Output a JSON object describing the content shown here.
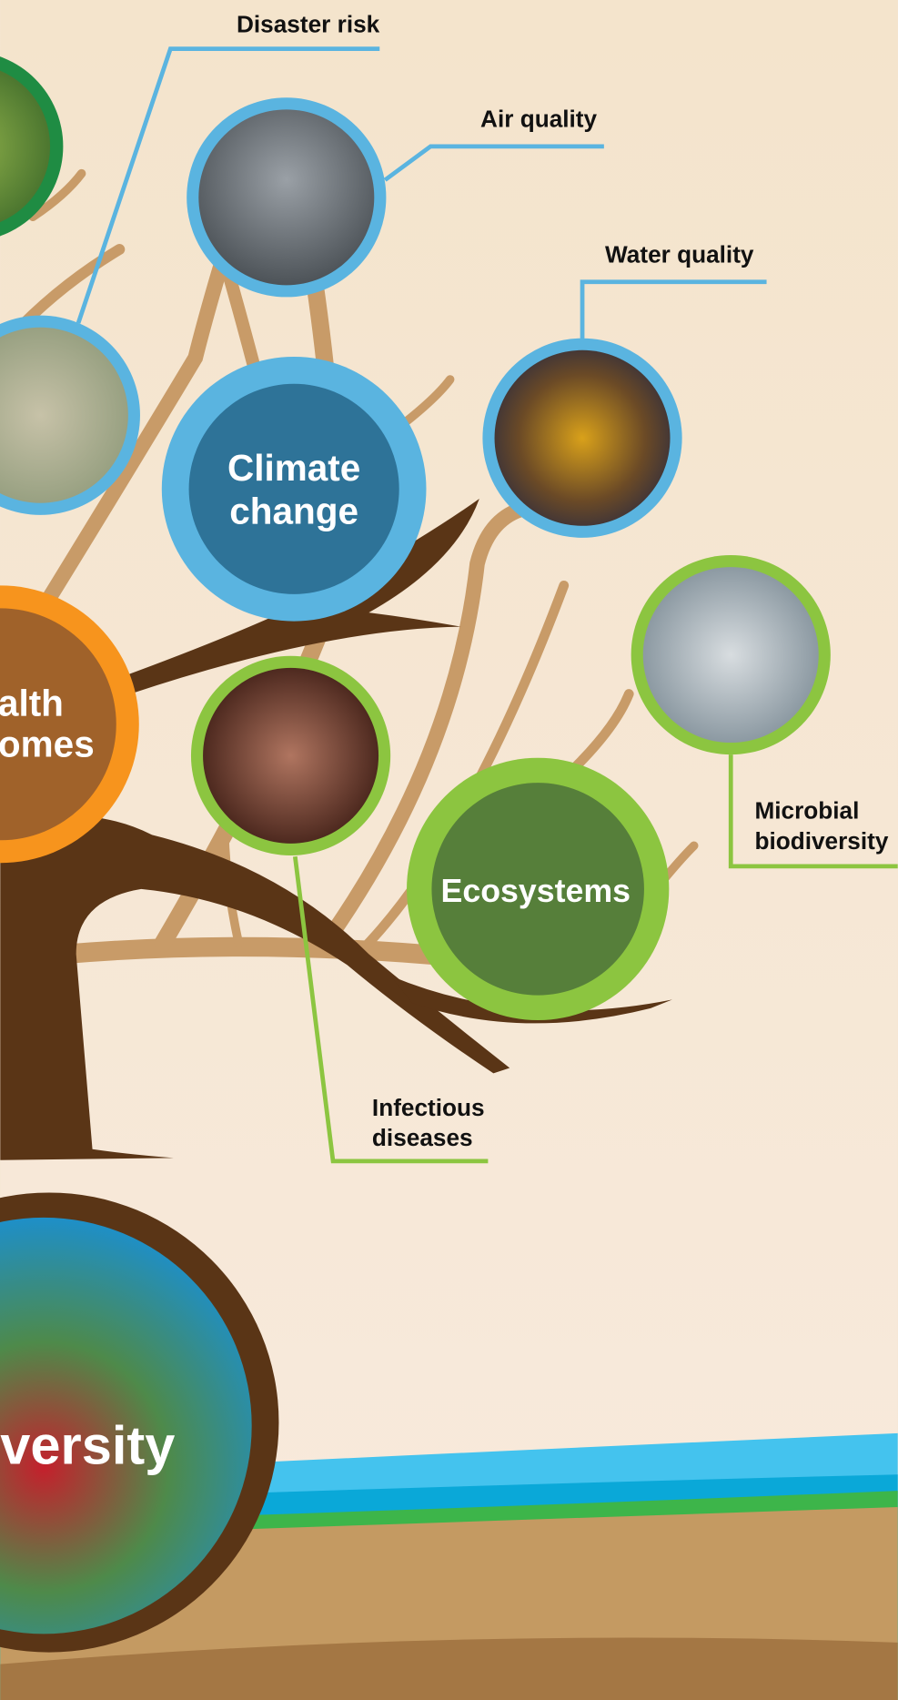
{
  "callouts": [
    {
      "lines": [
        "Disaster risk"
      ]
    },
    {
      "lines": [
        "Air quality"
      ]
    },
    {
      "lines": [
        "Water quality"
      ]
    },
    {
      "lines": [
        "Microbial",
        "biodiversity"
      ]
    },
    {
      "lines": [
        "Infectious",
        "diseases"
      ]
    }
  ],
  "hubs": [
    {
      "lines": [
        "Climate",
        "change"
      ]
    },
    {
      "lines": [
        "alth",
        "omes"
      ]
    },
    {
      "lines": [
        "Ecosystems"
      ]
    },
    {
      "lines": [
        "versity"
      ]
    }
  ]
}
